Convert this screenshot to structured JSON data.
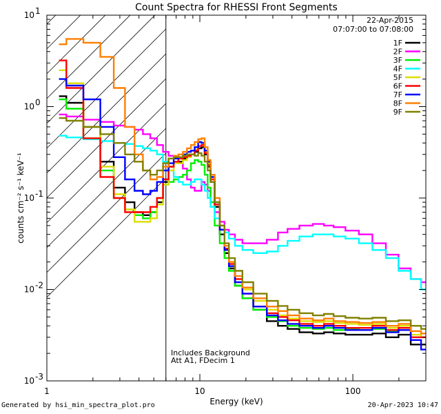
{
  "chart_data": {
    "type": "line",
    "title": "Count Spectra for RHESSI Front Segments",
    "xlabel": "Energy (keV)",
    "ylabel": "counts cm⁻² s⁻¹ keV⁻¹",
    "xscale": "log",
    "yscale": "log",
    "xlim": [
      1,
      300
    ],
    "ylim": [
      0.001,
      10
    ],
    "x_ticks": [
      {
        "value": 1,
        "label": "1"
      },
      {
        "value": 10,
        "label": "10"
      },
      {
        "value": 100,
        "label": "100"
      }
    ],
    "y_ticks": [
      {
        "value": 0.001,
        "base": "10",
        "exp": "-3"
      },
      {
        "value": 0.01,
        "base": "10",
        "exp": "-2"
      },
      {
        "value": 0.1,
        "base": "10",
        "exp": "-1"
      },
      {
        "value": 1,
        "base": "10",
        "exp": "0"
      },
      {
        "value": 10,
        "base": "10",
        "exp": "1"
      }
    ],
    "date": "22-Apr-2015",
    "time_range": "07:07:00 to 07:08:00",
    "attenuator_cutoff_kev": 6,
    "annotations": [
      "Includes Background",
      "Att A1, FDecim 1"
    ],
    "energy_kev": [
      1.2,
      1.5,
      2,
      2.5,
      3,
      3.5,
      4,
      4.5,
      5,
      5.5,
      6,
      6.5,
      7,
      7.5,
      8,
      8.5,
      9,
      9.5,
      10,
      10.5,
      11,
      11.5,
      12,
      13,
      14,
      15,
      16,
      18,
      20,
      25,
      30,
      35,
      40,
      50,
      60,
      70,
      80,
      100,
      120,
      150,
      180,
      220,
      260,
      300
    ],
    "series": [
      {
        "name": "1F",
        "color": "#000000",
        "values": [
          1.3,
          1.1,
          0.6,
          0.25,
          0.13,
          0.09,
          0.07,
          0.065,
          0.07,
          0.09,
          0.15,
          0.22,
          0.25,
          0.25,
          0.27,
          0.29,
          0.3,
          0.32,
          0.35,
          0.36,
          0.3,
          0.22,
          0.15,
          0.08,
          0.04,
          0.025,
          0.017,
          0.011,
          0.008,
          0.006,
          0.0045,
          0.004,
          0.0037,
          0.0034,
          0.0033,
          0.0034,
          0.0033,
          0.0032,
          0.0032,
          0.0033,
          0.003,
          0.0032,
          0.0025,
          0.0025
        ]
      },
      {
        "name": "2F",
        "color": "#ff00ff",
        "values": [
          0.82,
          0.78,
          0.72,
          0.68,
          0.62,
          0.6,
          0.56,
          0.5,
          0.45,
          0.38,
          0.32,
          0.29,
          0.27,
          0.24,
          0.21,
          0.16,
          0.13,
          0.12,
          0.12,
          0.15,
          0.14,
          0.12,
          0.09,
          0.07,
          0.055,
          0.045,
          0.04,
          0.035,
          0.032,
          0.032,
          0.035,
          0.042,
          0.046,
          0.05,
          0.052,
          0.05,
          0.048,
          0.044,
          0.04,
          0.032,
          0.024,
          0.017,
          0.013,
          0.012
        ]
      },
      {
        "name": "3F",
        "color": "#00ee00",
        "values": [
          1.2,
          0.95,
          0.45,
          0.2,
          0.1,
          0.075,
          0.065,
          0.06,
          0.07,
          0.1,
          0.14,
          0.15,
          0.16,
          0.17,
          0.18,
          0.2,
          0.24,
          0.26,
          0.25,
          0.23,
          0.18,
          0.13,
          0.09,
          0.05,
          0.032,
          0.022,
          0.016,
          0.011,
          0.008,
          0.006,
          0.005,
          0.0045,
          0.004,
          0.0038,
          0.0037,
          0.0038,
          0.0036,
          0.0037,
          0.0036,
          0.0037,
          0.0035,
          0.0038,
          0.003,
          0.003
        ]
      },
      {
        "name": "4F",
        "color": "#00ffff",
        "values": [
          0.48,
          0.46,
          0.44,
          0.42,
          0.4,
          0.39,
          0.37,
          0.35,
          0.33,
          0.3,
          0.25,
          0.2,
          0.17,
          0.15,
          0.14,
          0.14,
          0.15,
          0.16,
          0.16,
          0.14,
          0.12,
          0.1,
          0.08,
          0.06,
          0.05,
          0.042,
          0.036,
          0.03,
          0.027,
          0.025,
          0.026,
          0.03,
          0.034,
          0.038,
          0.04,
          0.04,
          0.038,
          0.036,
          0.032,
          0.027,
          0.022,
          0.016,
          0.013,
          0.01
        ]
      },
      {
        "name": "5F",
        "color": "#dddd00",
        "values": [
          2.5,
          1.8,
          0.6,
          0.22,
          0.11,
          0.075,
          0.055,
          0.055,
          0.06,
          0.085,
          0.14,
          0.2,
          0.24,
          0.24,
          0.26,
          0.28,
          0.3,
          0.34,
          0.37,
          0.38,
          0.32,
          0.24,
          0.17,
          0.09,
          0.045,
          0.028,
          0.019,
          0.013,
          0.01,
          0.0075,
          0.006,
          0.0052,
          0.0048,
          0.0045,
          0.0044,
          0.0045,
          0.0043,
          0.0042,
          0.0041,
          0.0042,
          0.0038,
          0.004,
          0.0032,
          0.003
        ]
      },
      {
        "name": "6F",
        "color": "#ff0000",
        "values": [
          3.2,
          1.6,
          0.45,
          0.17,
          0.1,
          0.07,
          0.07,
          0.07,
          0.08,
          0.1,
          0.16,
          0.22,
          0.25,
          0.27,
          0.28,
          0.29,
          0.3,
          0.33,
          0.37,
          0.38,
          0.31,
          0.23,
          0.16,
          0.085,
          0.045,
          0.028,
          0.019,
          0.013,
          0.009,
          0.0065,
          0.0055,
          0.005,
          0.0046,
          0.0042,
          0.004,
          0.0042,
          0.004,
          0.0038,
          0.0038,
          0.004,
          0.0036,
          0.0038,
          0.003,
          0.003
        ]
      },
      {
        "name": "7F",
        "color": "#0000ff",
        "values": [
          2.0,
          1.7,
          1.2,
          0.6,
          0.28,
          0.16,
          0.12,
          0.11,
          0.12,
          0.15,
          0.2,
          0.24,
          0.27,
          0.28,
          0.3,
          0.32,
          0.33,
          0.36,
          0.41,
          0.4,
          0.33,
          0.25,
          0.17,
          0.09,
          0.045,
          0.027,
          0.018,
          0.012,
          0.009,
          0.0065,
          0.0052,
          0.0046,
          0.0042,
          0.004,
          0.0038,
          0.004,
          0.0038,
          0.0036,
          0.0036,
          0.0038,
          0.0034,
          0.0036,
          0.0028,
          0.0022
        ]
      },
      {
        "name": "8F",
        "color": "#ff7f00",
        "values": [
          4.8,
          5.5,
          5.0,
          3.5,
          1.6,
          0.6,
          0.3,
          0.2,
          0.16,
          0.17,
          0.22,
          0.27,
          0.29,
          0.3,
          0.32,
          0.35,
          0.38,
          0.41,
          0.44,
          0.45,
          0.36,
          0.26,
          0.18,
          0.1,
          0.05,
          0.03,
          0.02,
          0.014,
          0.0105,
          0.008,
          0.0065,
          0.0058,
          0.0052,
          0.0048,
          0.0046,
          0.0048,
          0.0045,
          0.0044,
          0.0043,
          0.0044,
          0.004,
          0.0042,
          0.0035,
          0.0033
        ]
      },
      {
        "name": "9F",
        "color": "#808000",
        "values": [
          0.75,
          0.7,
          0.6,
          0.5,
          0.4,
          0.3,
          0.25,
          0.2,
          0.18,
          0.2,
          0.24,
          0.27,
          0.28,
          0.28,
          0.29,
          0.3,
          0.3,
          0.29,
          0.31,
          0.29,
          0.25,
          0.2,
          0.15,
          0.09,
          0.05,
          0.032,
          0.022,
          0.016,
          0.012,
          0.009,
          0.0075,
          0.0066,
          0.006,
          0.0055,
          0.0052,
          0.0054,
          0.0051,
          0.0049,
          0.0048,
          0.0049,
          0.0045,
          0.0046,
          0.004,
          0.0037
        ]
      }
    ]
  },
  "footer": {
    "left": "Generated by hsi_min_spectra_plot.pro",
    "right": "20-Apr-2023 10:47"
  }
}
